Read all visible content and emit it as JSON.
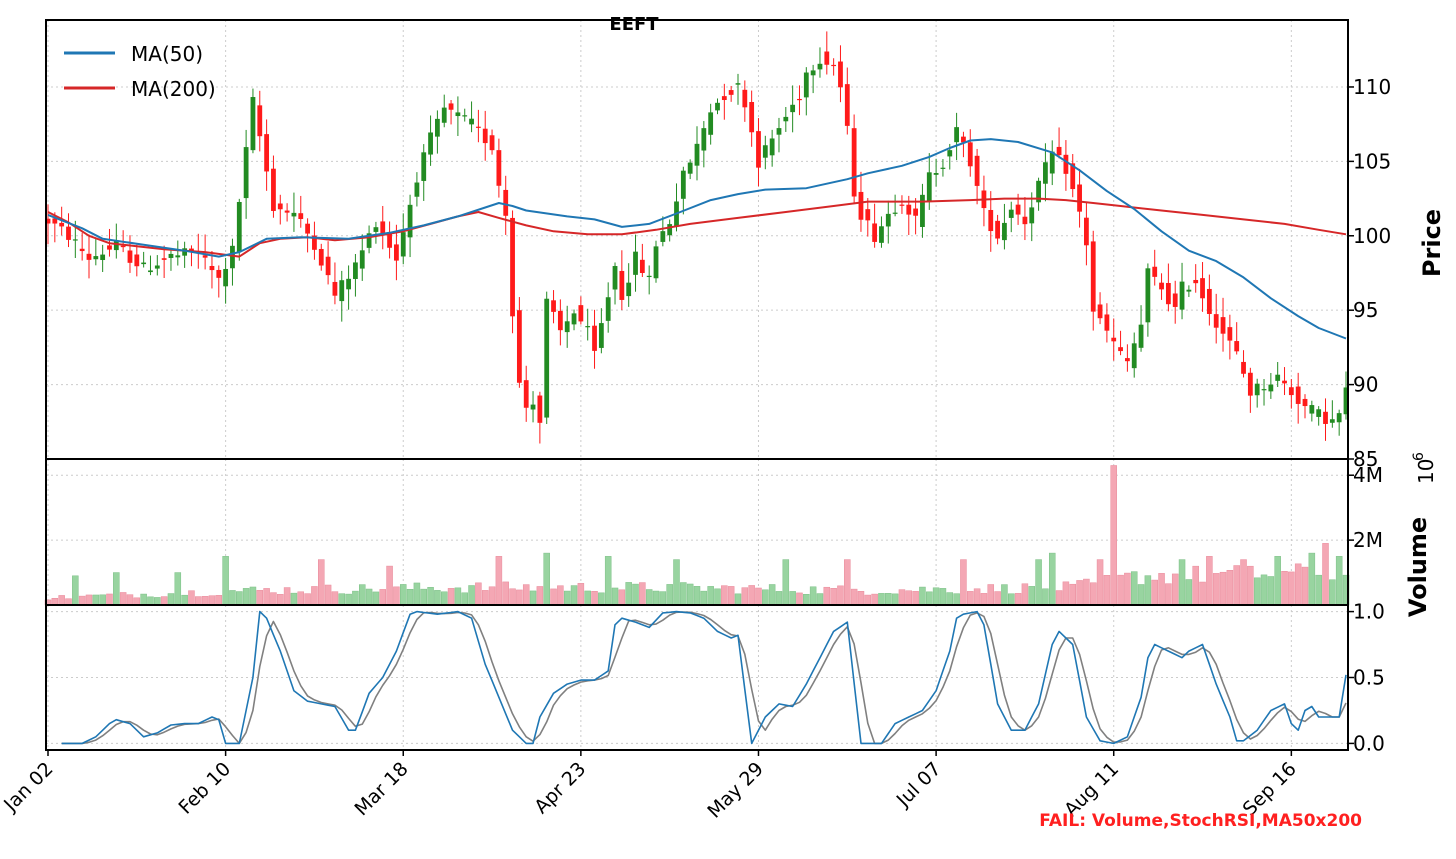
{
  "chart_data": {
    "type": "candlestick",
    "title": "EEFT",
    "footer_text": "FAIL: Volume,StochRSI,MA50x200",
    "x_tick_labels": [
      "Jan 02",
      "Feb 10",
      "Mar 18",
      "Apr 23",
      "May 29",
      "Jul 07",
      "Aug 11",
      "Sep 16"
    ],
    "x_tick_indices": [
      0,
      26,
      52,
      78,
      104,
      130,
      156,
      182
    ],
    "n_bars": 191,
    "panels": {
      "price": {
        "ylabel": "Price",
        "ylim": [
          85,
          114.5
        ],
        "ticks": [
          85,
          90,
          95,
          100,
          105,
          110
        ],
        "tick_labels": [
          "85",
          "90",
          "95",
          "100",
          "105",
          "110"
        ],
        "legend": [
          "MA(50)",
          "MA(200)"
        ],
        "legend_position": "top-left"
      },
      "volume": {
        "ylabel": "Volume",
        "offset_label": "10",
        "offset_exponent": "6",
        "ylim": [
          0,
          4.5
        ],
        "ticks": [
          2,
          4
        ],
        "tick_labels": [
          "2M",
          "4M"
        ]
      },
      "stochrsi": {
        "ylim": [
          -0.05,
          1.05
        ],
        "ticks": [
          0.0,
          0.5,
          1.0
        ],
        "tick_labels": [
          "0.0",
          "0.5",
          "1.0"
        ]
      }
    },
    "ma_50": [
      [
        0,
        101.4
      ],
      [
        5,
        100.5
      ],
      [
        8,
        99.8
      ],
      [
        14,
        99.4
      ],
      [
        20,
        99.0
      ],
      [
        25,
        98.6
      ],
      [
        28,
        98.9
      ],
      [
        32,
        99.8
      ],
      [
        37,
        99.9
      ],
      [
        44,
        99.8
      ],
      [
        50,
        100.2
      ],
      [
        55,
        100.7
      ],
      [
        60,
        101.3
      ],
      [
        64,
        101.9
      ],
      [
        66,
        102.2
      ],
      [
        68,
        102.0
      ],
      [
        70,
        101.7
      ],
      [
        76,
        101.3
      ],
      [
        80,
        101.1
      ],
      [
        84,
        100.6
      ],
      [
        88,
        100.8
      ],
      [
        92,
        101.5
      ],
      [
        97,
        102.4
      ],
      [
        101,
        102.8
      ],
      [
        105,
        103.1
      ],
      [
        111,
        103.2
      ],
      [
        114,
        103.5
      ],
      [
        117,
        103.8
      ],
      [
        120,
        104.2
      ],
      [
        125,
        104.7
      ],
      [
        129,
        105.3
      ],
      [
        132,
        105.9
      ],
      [
        135,
        106.4
      ],
      [
        138,
        106.5
      ],
      [
        142,
        106.3
      ],
      [
        147,
        105.6
      ],
      [
        151,
        104.4
      ],
      [
        155,
        103.0
      ],
      [
        159,
        101.8
      ],
      [
        163,
        100.3
      ],
      [
        167,
        99.0
      ],
      [
        171,
        98.3
      ],
      [
        175,
        97.2
      ],
      [
        179,
        95.8
      ],
      [
        183,
        94.6
      ],
      [
        186,
        93.8
      ],
      [
        190,
        93.1
      ]
    ],
    "ma_200": [
      [
        0,
        101.6
      ],
      [
        3,
        100.9
      ],
      [
        6,
        100.0
      ],
      [
        9,
        99.5
      ],
      [
        13,
        99.3
      ],
      [
        17,
        99.1
      ],
      [
        23,
        98.9
      ],
      [
        28,
        98.6
      ],
      [
        31,
        99.5
      ],
      [
        34,
        99.8
      ],
      [
        38,
        99.9
      ],
      [
        42,
        99.7
      ],
      [
        47,
        99.9
      ],
      [
        52,
        100.3
      ],
      [
        56,
        100.8
      ],
      [
        60,
        101.3
      ],
      [
        63,
        101.6
      ],
      [
        66,
        101.2
      ],
      [
        70,
        100.7
      ],
      [
        74,
        100.3
      ],
      [
        79,
        100.1
      ],
      [
        84,
        100.1
      ],
      [
        89,
        100.4
      ],
      [
        94,
        100.8
      ],
      [
        101,
        101.2
      ],
      [
        108,
        101.6
      ],
      [
        115,
        102.0
      ],
      [
        120,
        102.3
      ],
      [
        128,
        102.3
      ],
      [
        135,
        102.4
      ],
      [
        140,
        102.5
      ],
      [
        145,
        102.5
      ],
      [
        149,
        102.4
      ],
      [
        153,
        102.2
      ],
      [
        157,
        102.0
      ],
      [
        163,
        101.7
      ],
      [
        169,
        101.4
      ],
      [
        175,
        101.1
      ],
      [
        181,
        100.8
      ],
      [
        186,
        100.4
      ],
      [
        190,
        100.1
      ]
    ],
    "price_anchors": [
      [
        0,
        101.0
      ],
      [
        3,
        100.0
      ],
      [
        6,
        98.5
      ],
      [
        10,
        99.3
      ],
      [
        14,
        97.8
      ],
      [
        18,
        98.6
      ],
      [
        22,
        98.9
      ],
      [
        25,
        97.0
      ],
      [
        27,
        99.0
      ],
      [
        30,
        109.0
      ],
      [
        33,
        102.0
      ],
      [
        36,
        101.5
      ],
      [
        39,
        99.5
      ],
      [
        42,
        96.0
      ],
      [
        45,
        98.0
      ],
      [
        48,
        101.0
      ],
      [
        51,
        98.5
      ],
      [
        54,
        104.0
      ],
      [
        56,
        106.5
      ],
      [
        58,
        108.5
      ],
      [
        60,
        108.0
      ],
      [
        62,
        107.5
      ],
      [
        63,
        107.0
      ],
      [
        65,
        106.0
      ],
      [
        66,
        103.5
      ],
      [
        67,
        101.5
      ],
      [
        68,
        95.0
      ],
      [
        69,
        90.0
      ],
      [
        70,
        88.5
      ],
      [
        71,
        89.0
      ],
      [
        72,
        87.5
      ],
      [
        73,
        95.5
      ],
      [
        75,
        93.5
      ],
      [
        77,
        95.0
      ],
      [
        79,
        93.5
      ],
      [
        80,
        92.0
      ],
      [
        82,
        96.0
      ],
      [
        83,
        98.0
      ],
      [
        84,
        96.0
      ],
      [
        86,
        98.5
      ],
      [
        88,
        97.0
      ],
      [
        89,
        99.5
      ],
      [
        91,
        101.0
      ],
      [
        93,
        104.0
      ],
      [
        95,
        106.0
      ],
      [
        97,
        108.5
      ],
      [
        99,
        109.5
      ],
      [
        101,
        110.0
      ],
      [
        102,
        109.0
      ],
      [
        104,
        105.0
      ],
      [
        106,
        106.5
      ],
      [
        108,
        108.0
      ],
      [
        110,
        109.5
      ],
      [
        111,
        111.0
      ],
      [
        113,
        112.0
      ],
      [
        115,
        111.5
      ],
      [
        116,
        110.0
      ],
      [
        117,
        107.0
      ],
      [
        118,
        103.0
      ],
      [
        119,
        101.5
      ],
      [
        121,
        100.0
      ],
      [
        123,
        101.5
      ],
      [
        125,
        102.5
      ],
      [
        127,
        101.0
      ],
      [
        129,
        104.0
      ],
      [
        131,
        105.0
      ],
      [
        133,
        107.0
      ],
      [
        135,
        105.0
      ],
      [
        137,
        101.5
      ],
      [
        139,
        100.0
      ],
      [
        141,
        102.0
      ],
      [
        143,
        101.0
      ],
      [
        145,
        103.5
      ],
      [
        147,
        105.5
      ],
      [
        149,
        104.5
      ],
      [
        151,
        101.5
      ],
      [
        152,
        99.5
      ],
      [
        153,
        95.0
      ],
      [
        155,
        93.5
      ],
      [
        157,
        92.0
      ],
      [
        158,
        91.5
      ],
      [
        160,
        94.0
      ],
      [
        161,
        97.5
      ],
      [
        163,
        96.5
      ],
      [
        165,
        95.0
      ],
      [
        166,
        96.5
      ],
      [
        168,
        97.0
      ],
      [
        170,
        95.0
      ],
      [
        172,
        93.5
      ],
      [
        174,
        92.0
      ],
      [
        176,
        89.5
      ],
      [
        178,
        90.0
      ],
      [
        180,
        90.5
      ],
      [
        182,
        89.5
      ],
      [
        184,
        88.5
      ],
      [
        186,
        88.0
      ],
      [
        188,
        87.5
      ],
      [
        189,
        88.0
      ],
      [
        190,
        89.5
      ]
    ],
    "volume_spikes": [
      [
        4,
        0.9
      ],
      [
        10,
        1.0
      ],
      [
        19,
        1.0
      ],
      [
        26,
        1.5
      ],
      [
        40,
        1.4
      ],
      [
        50,
        1.2
      ],
      [
        66,
        1.5
      ],
      [
        73,
        1.6
      ],
      [
        82,
        1.5
      ],
      [
        92,
        1.4
      ],
      [
        108,
        1.4
      ],
      [
        117,
        1.4
      ],
      [
        134,
        1.4
      ],
      [
        145,
        1.4
      ],
      [
        147,
        1.6
      ],
      [
        154,
        1.4
      ],
      [
        156,
        4.3
      ],
      [
        166,
        1.4
      ],
      [
        170,
        1.5
      ],
      [
        175,
        1.4
      ],
      [
        180,
        1.5
      ],
      [
        185,
        1.6
      ],
      [
        187,
        1.9
      ],
      [
        189,
        1.5
      ]
    ],
    "stochrsi_k": [
      [
        2,
        0.0
      ],
      [
        5,
        0.0
      ],
      [
        7,
        0.05
      ],
      [
        9,
        0.15
      ],
      [
        10,
        0.18
      ],
      [
        12,
        0.15
      ],
      [
        14,
        0.05
      ],
      [
        16,
        0.08
      ],
      [
        18,
        0.14
      ],
      [
        20,
        0.15
      ],
      [
        22,
        0.15
      ],
      [
        24,
        0.2
      ],
      [
        25,
        0.18
      ],
      [
        26,
        0.0
      ],
      [
        28,
        0.0
      ],
      [
        30,
        0.5
      ],
      [
        31,
        1.0
      ],
      [
        32,
        0.95
      ],
      [
        34,
        0.7
      ],
      [
        36,
        0.4
      ],
      [
        38,
        0.32
      ],
      [
        40,
        0.3
      ],
      [
        42,
        0.28
      ],
      [
        44,
        0.1
      ],
      [
        45,
        0.1
      ],
      [
        47,
        0.38
      ],
      [
        49,
        0.5
      ],
      [
        51,
        0.7
      ],
      [
        53,
        0.98
      ],
      [
        54,
        1.0
      ],
      [
        57,
        0.98
      ],
      [
        60,
        1.0
      ],
      [
        62,
        0.95
      ],
      [
        64,
        0.6
      ],
      [
        66,
        0.35
      ],
      [
        68,
        0.1
      ],
      [
        70,
        0.0
      ],
      [
        71,
        0.0
      ],
      [
        72,
        0.2
      ],
      [
        74,
        0.38
      ],
      [
        76,
        0.45
      ],
      [
        78,
        0.48
      ],
      [
        80,
        0.48
      ],
      [
        82,
        0.55
      ],
      [
        83,
        0.9
      ],
      [
        84,
        0.95
      ],
      [
        86,
        0.92
      ],
      [
        88,
        0.88
      ],
      [
        90,
        0.99
      ],
      [
        92,
        1.0
      ],
      [
        94,
        0.99
      ],
      [
        96,
        0.95
      ],
      [
        98,
        0.85
      ],
      [
        100,
        0.8
      ],
      [
        101,
        0.82
      ],
      [
        103,
        0.0
      ],
      [
        105,
        0.2
      ],
      [
        107,
        0.3
      ],
      [
        109,
        0.28
      ],
      [
        111,
        0.45
      ],
      [
        113,
        0.65
      ],
      [
        115,
        0.85
      ],
      [
        117,
        0.92
      ],
      [
        119,
        0.0
      ],
      [
        122,
        0.0
      ],
      [
        124,
        0.15
      ],
      [
        126,
        0.2
      ],
      [
        128,
        0.25
      ],
      [
        130,
        0.4
      ],
      [
        132,
        0.7
      ],
      [
        133,
        0.95
      ],
      [
        134,
        0.98
      ],
      [
        136,
        1.0
      ],
      [
        137,
        0.9
      ],
      [
        139,
        0.3
      ],
      [
        141,
        0.1
      ],
      [
        143,
        0.1
      ],
      [
        145,
        0.3
      ],
      [
        147,
        0.75
      ],
      [
        148,
        0.85
      ],
      [
        150,
        0.75
      ],
      [
        152,
        0.2
      ],
      [
        154,
        0.02
      ],
      [
        156,
        0.0
      ],
      [
        158,
        0.05
      ],
      [
        160,
        0.35
      ],
      [
        161,
        0.65
      ],
      [
        162,
        0.75
      ],
      [
        164,
        0.7
      ],
      [
        166,
        0.65
      ],
      [
        167,
        0.7
      ],
      [
        169,
        0.75
      ],
      [
        171,
        0.45
      ],
      [
        173,
        0.2
      ],
      [
        174,
        0.02
      ],
      [
        175,
        0.02
      ],
      [
        177,
        0.1
      ],
      [
        179,
        0.25
      ],
      [
        181,
        0.3
      ],
      [
        182,
        0.15
      ],
      [
        183,
        0.1
      ],
      [
        184,
        0.25
      ],
      [
        185,
        0.28
      ],
      [
        186,
        0.2
      ],
      [
        189,
        0.2
      ],
      [
        190,
        0.52
      ]
    ]
  }
}
